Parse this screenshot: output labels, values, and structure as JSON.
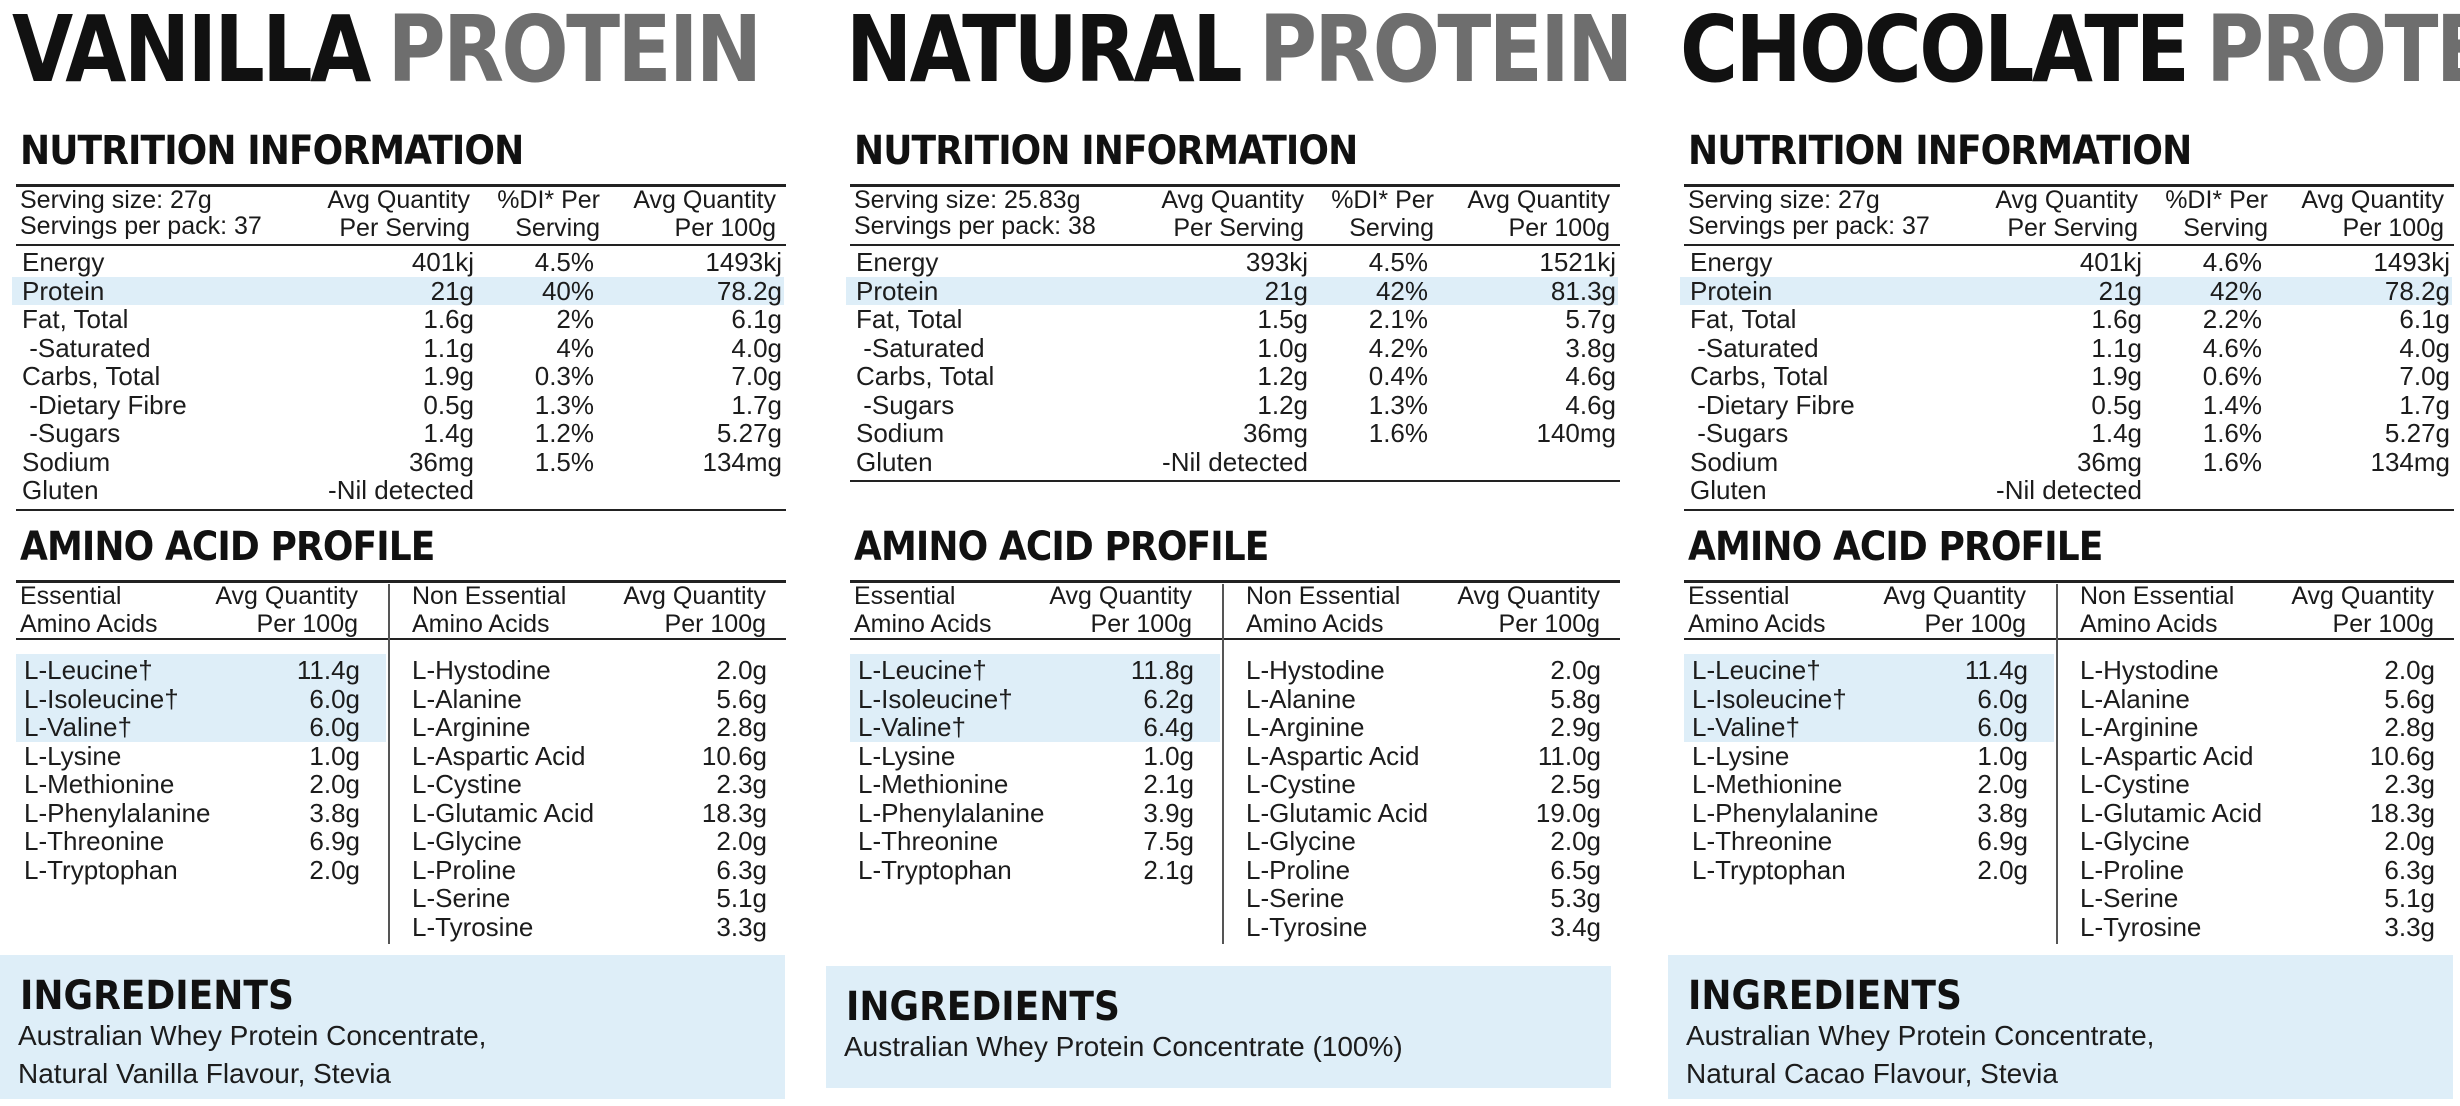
{
  "products": [
    {
      "title_word1": "VANILLA",
      "title_word2": "PROTEIN",
      "nutrition_heading": "NUTRITION INFORMATION",
      "serving_size": "Serving size: 27g",
      "servings_per_pack": "Servings per pack: 37",
      "col_headers": {
        "avg_serving_1": "Avg Quantity",
        "avg_serving_2": "Per Serving",
        "di_1": "%DI* Per",
        "di_2": "Serving",
        "avg_100_1": "Avg Quantity",
        "avg_100_2": "Per 100g"
      },
      "nutrition_rows": [
        {
          "name": "Energy",
          "serving": "401kj",
          "di": "4.5%",
          "per100": "1493kj"
        },
        {
          "name": "Protein",
          "serving": "21g",
          "di": "40%",
          "per100": "78.2g"
        },
        {
          "name": "Fat, Total",
          "serving": "1.6g",
          "di": "2%",
          "per100": "6.1g"
        },
        {
          "name": " -Saturated",
          "serving": "1.1g",
          "di": "4%",
          "per100": "4.0g"
        },
        {
          "name": "Carbs, Total",
          "serving": "1.9g",
          "di": "0.3%",
          "per100": "7.0g"
        },
        {
          "name": " -Dietary Fibre",
          "serving": "0.5g",
          "di": "1.3%",
          "per100": "1.7g"
        },
        {
          "name": " -Sugars",
          "serving": "1.4g",
          "di": "1.2%",
          "per100": "5.27g"
        },
        {
          "name": "Sodium",
          "serving": "36mg",
          "di": "1.5%",
          "per100": "134mg"
        },
        {
          "name": "Gluten",
          "serving": "-Nil detected",
          "di": "",
          "per100": ""
        }
      ],
      "amino_heading": "AMINO ACID PROFILE",
      "amino_headers": {
        "ess_1": "Essential",
        "ess_2": "Amino Acids",
        "avg_1": "Avg Quantity",
        "avg_2": "Per 100g",
        "non_1": "Non Essential",
        "non_2": "Amino Acids",
        "avg2_1": "Avg Quantity",
        "avg2_2": "Per 100g"
      },
      "essential": [
        {
          "name": "L-Leucine†",
          "value": "11.4g"
        },
        {
          "name": "L-Isoleucine†",
          "value": "6.0g"
        },
        {
          "name": "L-Valine†",
          "value": "6.0g"
        },
        {
          "name": "L-Lysine",
          "value": "1.0g"
        },
        {
          "name": "L-Methionine",
          "value": "2.0g"
        },
        {
          "name": "L-Phenylalanine",
          "value": "3.8g"
        },
        {
          "name": "L-Threonine",
          "value": "6.9g"
        },
        {
          "name": "L-Tryptophan",
          "value": "2.0g"
        }
      ],
      "non_essential": [
        {
          "name": "L-Hystodine",
          "value": "2.0g"
        },
        {
          "name": "L-Alanine",
          "value": "5.6g"
        },
        {
          "name": "L-Arginine",
          "value": "2.8g"
        },
        {
          "name": "L-Aspartic Acid",
          "value": "10.6g"
        },
        {
          "name": "L-Cystine",
          "value": "2.3g"
        },
        {
          "name": "L-Glutamic Acid",
          "value": "18.3g"
        },
        {
          "name": "L-Glycine",
          "value": "2.0g"
        },
        {
          "name": "L-Proline",
          "value": "6.3g"
        },
        {
          "name": "L-Serine",
          "value": "5.1g"
        },
        {
          "name": "L-Tyrosine",
          "value": "3.3g"
        }
      ],
      "ingredients_heading": "INGREDIENTS",
      "ingredients_line1": "Australian Whey Protein Concentrate,",
      "ingredients_line2": "Natural Vanilla Flavour, Stevia"
    },
    {
      "title_word1": "NATURAL",
      "title_word2": "PROTEIN",
      "nutrition_heading": "NUTRITION INFORMATION",
      "serving_size": "Serving size: 25.83g",
      "servings_per_pack": "Servings per pack: 38",
      "col_headers": {
        "avg_serving_1": "Avg Quantity",
        "avg_serving_2": "Per Serving",
        "di_1": "%DI* Per",
        "di_2": "Serving",
        "avg_100_1": "Avg Quantity",
        "avg_100_2": "Per 100g"
      },
      "nutrition_rows": [
        {
          "name": "Energy",
          "serving": "393kj",
          "di": "4.5%",
          "per100": "1521kj"
        },
        {
          "name": "Protein",
          "serving": "21g",
          "di": "42%",
          "per100": "81.3g"
        },
        {
          "name": "Fat, Total",
          "serving": "1.5g",
          "di": "2.1%",
          "per100": "5.7g"
        },
        {
          "name": " -Saturated",
          "serving": "1.0g",
          "di": "4.2%",
          "per100": "3.8g"
        },
        {
          "name": "Carbs, Total",
          "serving": "1.2g",
          "di": "0.4%",
          "per100": "4.6g"
        },
        {
          "name": " -Sugars",
          "serving": "1.2g",
          "di": "1.3%",
          "per100": "4.6g"
        },
        {
          "name": "Sodium",
          "serving": "36mg",
          "di": "1.6%",
          "per100": "140mg"
        },
        {
          "name": "Gluten",
          "serving": "-Nil detected",
          "di": "",
          "per100": ""
        }
      ],
      "amino_heading": "AMINO ACID PROFILE",
      "amino_headers": {
        "ess_1": "Essential",
        "ess_2": "Amino Acids",
        "avg_1": "Avg Quantity",
        "avg_2": "Per 100g",
        "non_1": "Non Essential",
        "non_2": "Amino Acids",
        "avg2_1": "Avg Quantity",
        "avg2_2": "Per 100g"
      },
      "essential": [
        {
          "name": "L-Leucine†",
          "value": "11.8g"
        },
        {
          "name": "L-Isoleucine†",
          "value": "6.2g"
        },
        {
          "name": "L-Valine†",
          "value": "6.4g"
        },
        {
          "name": "L-Lysine",
          "value": "1.0g"
        },
        {
          "name": "L-Methionine",
          "value": "2.1g"
        },
        {
          "name": "L-Phenylalanine",
          "value": "3.9g"
        },
        {
          "name": "L-Threonine",
          "value": "7.5g"
        },
        {
          "name": "L-Tryptophan",
          "value": "2.1g"
        }
      ],
      "non_essential": [
        {
          "name": "L-Hystodine",
          "value": "2.0g"
        },
        {
          "name": "L-Alanine",
          "value": "5.8g"
        },
        {
          "name": "L-Arginine",
          "value": "2.9g"
        },
        {
          "name": "L-Aspartic Acid",
          "value": "11.0g"
        },
        {
          "name": "L-Cystine",
          "value": "2.5g"
        },
        {
          "name": "L-Glutamic Acid",
          "value": "19.0g"
        },
        {
          "name": "L-Glycine",
          "value": "2.0g"
        },
        {
          "name": "L-Proline",
          "value": "6.5g"
        },
        {
          "name": "L-Serine",
          "value": "5.3g"
        },
        {
          "name": "L-Tyrosine",
          "value": "3.4g"
        }
      ],
      "ingredients_heading": "INGREDIENTS",
      "ingredients_line1": "Australian Whey Protein Concentrate (100%)",
      "ingredients_line2": ""
    },
    {
      "title_word1": "CHOCOLATE",
      "title_word2": "PROTEIN",
      "nutrition_heading": "NUTRITION INFORMATION",
      "serving_size": "Serving size: 27g",
      "servings_per_pack": "Servings per pack: 37",
      "col_headers": {
        "avg_serving_1": "Avg Quantity",
        "avg_serving_2": "Per Serving",
        "di_1": "%DI* Per",
        "di_2": "Serving",
        "avg_100_1": "Avg Quantity",
        "avg_100_2": "Per 100g"
      },
      "nutrition_rows": [
        {
          "name": "Energy",
          "serving": "401kj",
          "di": "4.6%",
          "per100": "1493kj"
        },
        {
          "name": "Protein",
          "serving": "21g",
          "di": "42%",
          "per100": "78.2g"
        },
        {
          "name": "Fat, Total",
          "serving": "1.6g",
          "di": "2.2%",
          "per100": "6.1g"
        },
        {
          "name": " -Saturated",
          "serving": "1.1g",
          "di": "4.6%",
          "per100": "4.0g"
        },
        {
          "name": "Carbs, Total",
          "serving": "1.9g",
          "di": "0.6%",
          "per100": "7.0g"
        },
        {
          "name": " -Dietary Fibre",
          "serving": "0.5g",
          "di": "1.4%",
          "per100": "1.7g"
        },
        {
          "name": " -Sugars",
          "serving": "1.4g",
          "di": "1.6%",
          "per100": "5.27g"
        },
        {
          "name": "Sodium",
          "serving": "36mg",
          "di": "1.6%",
          "per100": "134mg"
        },
        {
          "name": "Gluten",
          "serving": "-Nil detected",
          "di": "",
          "per100": ""
        }
      ],
      "amino_heading": "AMINO ACID PROFILE",
      "amino_headers": {
        "ess_1": "Essential",
        "ess_2": "Amino Acids",
        "avg_1": "Avg Quantity",
        "avg_2": "Per 100g",
        "non_1": "Non Essential",
        "non_2": "Amino Acids",
        "avg2_1": "Avg Quantity",
        "avg2_2": "Per 100g"
      },
      "essential": [
        {
          "name": "L-Leucine†",
          "value": "11.4g"
        },
        {
          "name": "L-Isoleucine†",
          "value": "6.0g"
        },
        {
          "name": "L-Valine†",
          "value": "6.0g"
        },
        {
          "name": "L-Lysine",
          "value": "1.0g"
        },
        {
          "name": "L-Methionine",
          "value": "2.0g"
        },
        {
          "name": "L-Phenylalanine",
          "value": "3.8g"
        },
        {
          "name": "L-Threonine",
          "value": "6.9g"
        },
        {
          "name": "L-Tryptophan",
          "value": "2.0g"
        }
      ],
      "non_essential": [
        {
          "name": "L-Hystodine",
          "value": "2.0g"
        },
        {
          "name": "L-Alanine",
          "value": "5.6g"
        },
        {
          "name": "L-Arginine",
          "value": "2.8g"
        },
        {
          "name": "L-Aspartic Acid",
          "value": "10.6g"
        },
        {
          "name": "L-Cystine",
          "value": "2.3g"
        },
        {
          "name": "L-Glutamic Acid",
          "value": "18.3g"
        },
        {
          "name": "L-Glycine",
          "value": "2.0g"
        },
        {
          "name": "L-Proline",
          "value": "6.3g"
        },
        {
          "name": "L-Serine",
          "value": "5.1g"
        },
        {
          "name": "L-Tyrosine",
          "value": "3.3g"
        }
      ],
      "ingredients_heading": "INGREDIENTS",
      "ingredients_line1": "Australian Whey Protein Concentrate,",
      "ingredients_line2": "Natural Cacao Flavour, Stevia"
    }
  ],
  "colors": {
    "highlight": "#deeef8",
    "title_dark": "#111111",
    "title_grey": "#6e6e6e"
  }
}
